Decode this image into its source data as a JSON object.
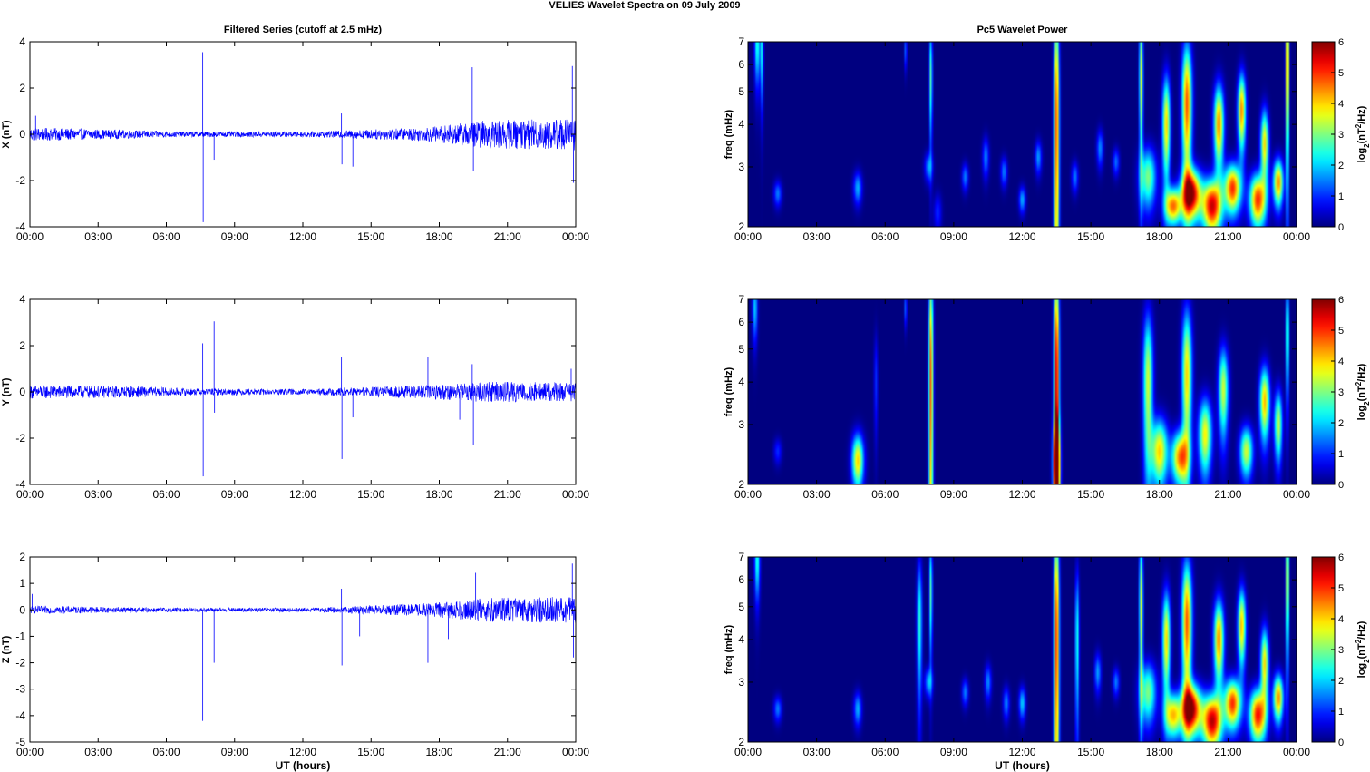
{
  "suptitle": "VELIES Wavelet Spectra on 09 July      2009",
  "chart_data": [
    {
      "type": "line",
      "title": "Filtered Series (cutoff at 2.5 mHz)",
      "ylabel": "X (nT)",
      "xlabel": "",
      "xlim": [
        0,
        24
      ],
      "ylim": [
        -4,
        4
      ],
      "yticks": [
        -4,
        -2,
        0,
        2,
        4
      ],
      "xticks": [
        "00:00",
        "03:00",
        "06:00",
        "09:00",
        "12:00",
        "15:00",
        "18:00",
        "21:00",
        "00:00"
      ],
      "color": "#0000ff",
      "base_amplitude": [
        [
          0,
          0.3
        ],
        [
          6.5,
          0.12
        ],
        [
          12.5,
          0.12
        ],
        [
          17.5,
          0.3
        ],
        [
          20,
          0.6
        ],
        [
          24,
          0.7
        ]
      ],
      "spikes": [
        [
          0.25,
          0.8
        ],
        [
          7.6,
          3.55
        ],
        [
          7.62,
          -3.8
        ],
        [
          8.1,
          -1.1
        ],
        [
          13.7,
          0.9
        ],
        [
          13.72,
          -1.3
        ],
        [
          14.2,
          -1.4
        ],
        [
          19.45,
          2.9
        ],
        [
          19.5,
          -1.6
        ],
        [
          23.85,
          2.95
        ],
        [
          23.9,
          -2.1
        ]
      ]
    },
    {
      "type": "line",
      "title": "",
      "ylabel": "Y (nT)",
      "xlabel": "",
      "xlim": [
        0,
        24
      ],
      "ylim": [
        -4,
        4
      ],
      "yticks": [
        -4,
        -2,
        0,
        2,
        4
      ],
      "xticks": [
        "00:00",
        "03:00",
        "06:00",
        "09:00",
        "12:00",
        "15:00",
        "18:00",
        "21:00",
        "00:00"
      ],
      "color": "#0000ff",
      "base_amplitude": [
        [
          0,
          0.3
        ],
        [
          4.5,
          0.25
        ],
        [
          7,
          0.15
        ],
        [
          12.5,
          0.12
        ],
        [
          17.5,
          0.3
        ],
        [
          20,
          0.45
        ],
        [
          24,
          0.4
        ]
      ],
      "spikes": [
        [
          7.6,
          2.1
        ],
        [
          7.62,
          -3.65
        ],
        [
          8.1,
          3.05
        ],
        [
          8.12,
          -0.9
        ],
        [
          13.7,
          1.5
        ],
        [
          13.72,
          -2.9
        ],
        [
          14.2,
          -1.1
        ],
        [
          17.5,
          1.5
        ],
        [
          18.9,
          -1.2
        ],
        [
          19.45,
          1.2
        ],
        [
          19.5,
          -2.3
        ],
        [
          23.8,
          1.0
        ]
      ]
    },
    {
      "type": "line",
      "title": "",
      "ylabel": "Z (nT)",
      "xlabel": "UT (hours)",
      "xlim": [
        0,
        24
      ],
      "ylim": [
        -5,
        2
      ],
      "yticks": [
        -5,
        -4,
        -3,
        -2,
        -1,
        0,
        1,
        2
      ],
      "xticks": [
        "00:00",
        "03:00",
        "06:00",
        "09:00",
        "12:00",
        "15:00",
        "18:00",
        "21:00",
        "00:00"
      ],
      "color": "#0000ff",
      "base_amplitude": [
        [
          0,
          0.15
        ],
        [
          6,
          0.08
        ],
        [
          12.5,
          0.08
        ],
        [
          17.5,
          0.25
        ],
        [
          20,
          0.45
        ],
        [
          24,
          0.5
        ]
      ],
      "spikes": [
        [
          0.1,
          0.6
        ],
        [
          7.6,
          -4.2
        ],
        [
          8.1,
          -2.0
        ],
        [
          13.7,
          0.8
        ],
        [
          13.72,
          -2.1
        ],
        [
          14.5,
          -1.0
        ],
        [
          17.5,
          -2.0
        ],
        [
          18.4,
          -1.1
        ],
        [
          19.6,
          1.4
        ],
        [
          23.85,
          1.75
        ],
        [
          23.9,
          -1.8
        ]
      ]
    },
    {
      "type": "heatmap",
      "title": "Pc5 Wavelet Power",
      "ylabel": "freq (mHz)",
      "xlabel": "",
      "xlim": [
        0,
        24
      ],
      "ylim": [
        2,
        7
      ],
      "yscale": "log",
      "yticks": [
        2,
        3,
        4,
        5,
        6,
        7
      ],
      "xticks": [
        "00:00",
        "03:00",
        "06:00",
        "09:00",
        "12:00",
        "15:00",
        "18:00",
        "21:00",
        "00:00"
      ],
      "colorbar": {
        "label": "log2(nT²/Hz)",
        "range": [
          0,
          6
        ],
        "ticks": [
          0,
          1,
          2,
          3,
          4,
          5,
          6
        ],
        "colormap": "jet"
      },
      "blobs": [
        [
          0.4,
          6.8,
          0.08,
          1.2,
          2.5
        ],
        [
          0.6,
          6.5,
          0.05,
          1.5,
          2.2
        ],
        [
          1.3,
          2.5,
          0.12,
          0.15,
          1.5
        ],
        [
          4.8,
          2.6,
          0.13,
          0.2,
          1.8
        ],
        [
          6.9,
          6.6,
          0.04,
          0.6,
          1.5
        ],
        [
          7.9,
          3.0,
          0.12,
          0.2,
          1.6
        ],
        [
          8.0,
          5.5,
          0.05,
          1.5,
          2.8
        ],
        [
          8.3,
          2.2,
          0.12,
          0.2,
          1.0
        ],
        [
          9.5,
          2.8,
          0.1,
          0.18,
          1.5
        ],
        [
          10.4,
          3.2,
          0.1,
          0.3,
          1.5
        ],
        [
          11.2,
          2.9,
          0.1,
          0.2,
          1.5
        ],
        [
          12.0,
          2.4,
          0.1,
          0.15,
          1.8
        ],
        [
          12.7,
          3.2,
          0.1,
          0.25,
          1.7
        ],
        [
          13.5,
          4.0,
          0.08,
          3.0,
          5.0
        ],
        [
          14.3,
          2.8,
          0.1,
          0.2,
          1.5
        ],
        [
          15.4,
          3.4,
          0.1,
          0.3,
          1.6
        ],
        [
          16.1,
          3.1,
          0.1,
          0.2,
          1.4
        ],
        [
          17.2,
          5.5,
          0.06,
          2.0,
          3.5
        ],
        [
          17.5,
          2.8,
          0.25,
          0.4,
          3.0
        ],
        [
          18.3,
          4.0,
          0.12,
          1.0,
          4.0
        ],
        [
          18.6,
          2.3,
          0.25,
          0.2,
          4.5
        ],
        [
          19.2,
          4.6,
          0.15,
          1.5,
          4.8
        ],
        [
          19.4,
          2.5,
          0.3,
          0.3,
          5.8
        ],
        [
          20.3,
          2.3,
          0.3,
          0.3,
          5.5
        ],
        [
          20.6,
          4.0,
          0.15,
          0.8,
          4.5
        ],
        [
          21.2,
          2.6,
          0.25,
          0.3,
          5.0
        ],
        [
          21.6,
          4.4,
          0.12,
          0.8,
          4.5
        ],
        [
          22.3,
          2.4,
          0.25,
          0.3,
          5.0
        ],
        [
          22.6,
          3.5,
          0.12,
          0.6,
          4.0
        ],
        [
          23.2,
          2.7,
          0.15,
          0.3,
          4.5
        ],
        [
          23.6,
          6.0,
          0.05,
          2.5,
          5.0
        ]
      ]
    },
    {
      "type": "heatmap",
      "title": "",
      "ylabel": "freq (mHz)",
      "xlabel": "",
      "xlim": [
        0,
        24
      ],
      "ylim": [
        2,
        7
      ],
      "yscale": "log",
      "yticks": [
        2,
        3,
        4,
        5,
        6,
        7
      ],
      "xticks": [
        "00:00",
        "03:00",
        "06:00",
        "09:00",
        "12:00",
        "15:00",
        "18:00",
        "21:00",
        "00:00"
      ],
      "colorbar": {
        "label": "log2(nT²/Hz)",
        "range": [
          0,
          6
        ],
        "ticks": [
          0,
          1,
          2,
          3,
          4,
          5,
          6
        ],
        "colormap": "jet"
      },
      "blobs": [
        [
          0.3,
          6.6,
          0.08,
          1.0,
          2.0
        ],
        [
          1.3,
          2.5,
          0.12,
          0.15,
          1.0
        ],
        [
          4.8,
          2.35,
          0.18,
          0.3,
          4.0
        ],
        [
          5.6,
          4.0,
          0.06,
          1.0,
          1.0
        ],
        [
          6.9,
          6.6,
          0.04,
          0.6,
          1.5
        ],
        [
          8.0,
          4.0,
          0.07,
          3.0,
          4.8
        ],
        [
          13.5,
          4.0,
          0.08,
          3.0,
          5.8
        ],
        [
          13.5,
          2.3,
          0.1,
          0.5,
          5.8
        ],
        [
          17.5,
          4.0,
          0.15,
          1.5,
          3.5
        ],
        [
          18.0,
          2.5,
          0.25,
          0.4,
          4.0
        ],
        [
          18.9,
          2.4,
          0.25,
          0.3,
          4.5
        ],
        [
          19.2,
          4.2,
          0.15,
          1.5,
          4.0
        ],
        [
          20.0,
          2.8,
          0.2,
          0.5,
          3.8
        ],
        [
          20.8,
          3.8,
          0.15,
          0.8,
          3.5
        ],
        [
          21.8,
          2.5,
          0.2,
          0.3,
          3.5
        ],
        [
          22.6,
          3.5,
          0.15,
          0.6,
          4.2
        ],
        [
          23.2,
          3.0,
          0.12,
          0.5,
          3.5
        ],
        [
          23.6,
          5.5,
          0.05,
          1.5,
          3.0
        ]
      ]
    },
    {
      "type": "heatmap",
      "title": "",
      "ylabel": "freq (mHz)",
      "xlabel": "UT (hours)",
      "xlim": [
        0,
        24
      ],
      "ylim": [
        2,
        7
      ],
      "yscale": "log",
      "yticks": [
        2,
        3,
        4,
        5,
        6,
        7
      ],
      "xticks": [
        "00:00",
        "03:00",
        "06:00",
        "09:00",
        "12:00",
        "15:00",
        "18:00",
        "21:00",
        "00:00"
      ],
      "colorbar": {
        "label": "log2(nT²/Hz)",
        "range": [
          0,
          6
        ],
        "ticks": [
          0,
          1,
          2,
          3,
          4,
          5,
          6
        ],
        "colormap": "jet"
      },
      "blobs": [
        [
          0.4,
          6.8,
          0.08,
          1.2,
          2.5
        ],
        [
          1.3,
          2.5,
          0.12,
          0.15,
          1.5
        ],
        [
          4.8,
          2.5,
          0.12,
          0.2,
          1.8
        ],
        [
          7.5,
          4.5,
          0.08,
          1.5,
          2.5
        ],
        [
          7.9,
          3.0,
          0.12,
          0.2,
          1.8
        ],
        [
          8.0,
          5.5,
          0.05,
          1.5,
          2.8
        ],
        [
          9.5,
          2.8,
          0.1,
          0.18,
          1.5
        ],
        [
          10.5,
          3.0,
          0.1,
          0.25,
          1.6
        ],
        [
          11.3,
          2.6,
          0.1,
          0.2,
          1.5
        ],
        [
          12.0,
          2.6,
          0.1,
          0.2,
          2.0
        ],
        [
          13.5,
          4.0,
          0.08,
          3.0,
          5.2
        ],
        [
          14.4,
          4.0,
          0.06,
          1.5,
          2.5
        ],
        [
          15.3,
          3.2,
          0.1,
          0.3,
          1.7
        ],
        [
          16.1,
          3.0,
          0.1,
          0.2,
          1.5
        ],
        [
          17.2,
          5.0,
          0.06,
          2.0,
          3.5
        ],
        [
          17.5,
          2.8,
          0.25,
          0.4,
          3.0
        ],
        [
          18.3,
          4.0,
          0.12,
          1.0,
          4.0
        ],
        [
          18.6,
          2.4,
          0.25,
          0.25,
          4.0
        ],
        [
          19.2,
          4.5,
          0.15,
          1.5,
          4.8
        ],
        [
          19.4,
          2.5,
          0.3,
          0.3,
          5.8
        ],
        [
          20.3,
          2.3,
          0.3,
          0.3,
          5.6
        ],
        [
          20.6,
          4.0,
          0.15,
          0.8,
          4.5
        ],
        [
          21.2,
          2.6,
          0.25,
          0.3,
          5.0
        ],
        [
          21.6,
          4.4,
          0.12,
          0.8,
          4.2
        ],
        [
          22.3,
          2.4,
          0.25,
          0.3,
          5.2
        ],
        [
          22.6,
          3.4,
          0.12,
          0.6,
          4.0
        ],
        [
          23.2,
          2.7,
          0.15,
          0.3,
          4.5
        ],
        [
          23.6,
          6.0,
          0.05,
          2.0,
          4.0
        ]
      ]
    }
  ]
}
